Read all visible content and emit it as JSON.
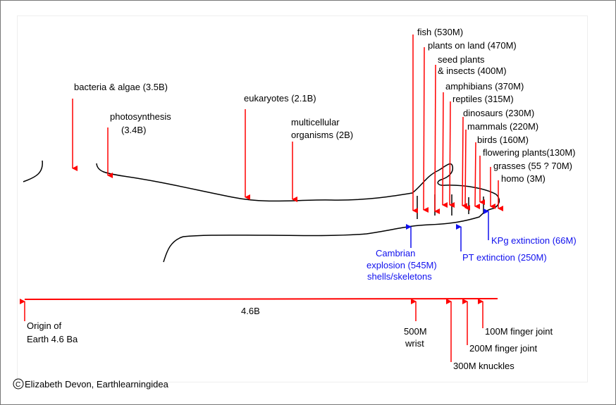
{
  "title_timeline": "4.6B",
  "events": [
    {
      "label": "bacteria & algae (3.5B)"
    },
    {
      "label": "photosynthesis",
      "label2": "(3.4B)"
    },
    {
      "label": "eukaryotes (2.1B)"
    },
    {
      "label": "multicellular",
      "label2": "organisms (2B)"
    },
    {
      "label": "fish (530M)"
    },
    {
      "label": "plants on land (470M)"
    },
    {
      "label": "seed plants",
      "label2": "& insects (400M)"
    },
    {
      "label": "amphibians (370M)"
    },
    {
      "label": "reptiles (315M)"
    },
    {
      "label": "dinosaurs (230M)"
    },
    {
      "label": "mammals (220M)"
    },
    {
      "label": "birds (160M)"
    },
    {
      "label": "flowering plants(130M)"
    },
    {
      "label": "grasses (55 ? 70M)"
    },
    {
      "label": "homo (3M)"
    }
  ],
  "extinctions": [
    {
      "line1": "Cambrian",
      "line2": "explosion (545M)",
      "line3": "shells/skeletons"
    },
    {
      "line1": "PT extinction (250M)"
    },
    {
      "line1": "KPg extinction (66M)"
    }
  ],
  "timeline_marks": [
    {
      "line1": "Origin of",
      "line2": "Earth 4.6 Ba"
    },
    {
      "line1": "500M",
      "line2": "wrist"
    },
    {
      "line1": "300M knuckles"
    },
    {
      "line1": "200M finger joint"
    },
    {
      "line1": "100M finger joint"
    }
  ],
  "copyright": "Elizabeth Devon, Earthlearningidea",
  "colors": {
    "red": "#ff0000",
    "blue": "#1010ee",
    "outline": "#000000"
  }
}
